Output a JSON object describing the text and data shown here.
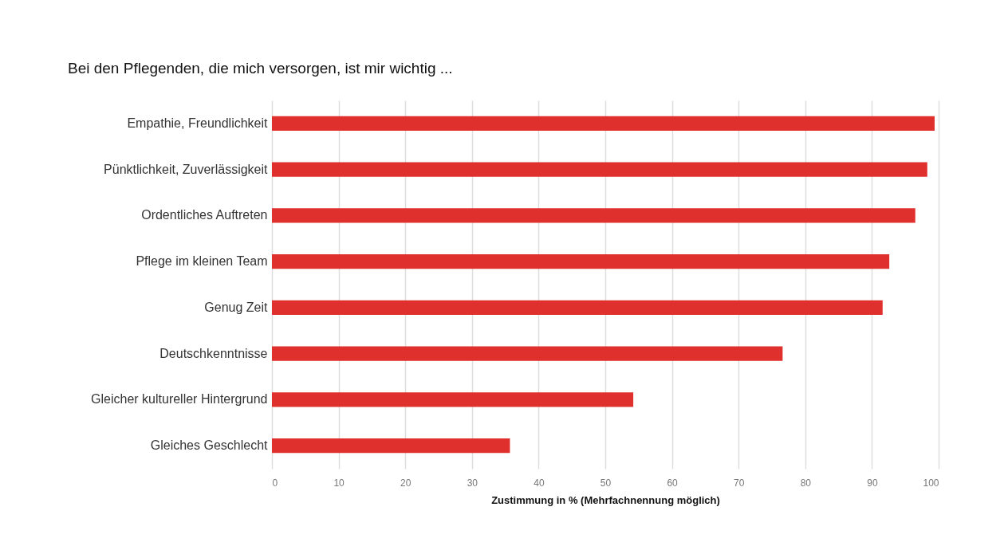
{
  "chart_data": {
    "type": "bar",
    "orientation": "horizontal",
    "title": "Bei den Pflegenden, die mich versorgen, ist mir wichtig ...",
    "xlabel": "Zustimmung in % (Mehrfachnennung möglich)",
    "categories": [
      "Empathie, Freundlichkeit",
      "Pünktlichkeit, Zuverlässigkeit",
      "Ordentliches Auftreten",
      "Pflege im kleinen Team",
      "Genug Zeit",
      "Deutschkenntnisse",
      "Gleicher kultureller Hintergrund",
      "Gleiches Geschlecht"
    ],
    "values": [
      99.4,
      98.3,
      96.5,
      92.6,
      91.6,
      76.6,
      54.2,
      35.7
    ],
    "color": "#e0302d",
    "xlim": [
      0,
      100
    ],
    "xticks": [
      0,
      10,
      20,
      30,
      40,
      50,
      60,
      70,
      80,
      90,
      100
    ],
    "grid": "x"
  }
}
